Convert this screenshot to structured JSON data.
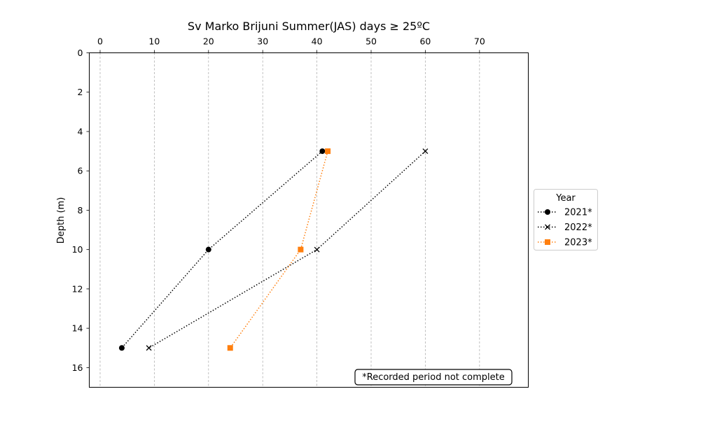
{
  "chart_data": {
    "type": "line",
    "title": "Sv Marko Brijuni Summer(JAS) days ≥ 25ºC",
    "xlabel": "",
    "ylabel": "Depth (m)",
    "x_axis_position": "top",
    "y_axis_inverted": true,
    "xlim": [
      -2,
      79
    ],
    "ylim": [
      17,
      0
    ],
    "x_ticks": [
      0,
      10,
      20,
      30,
      40,
      50,
      60,
      70
    ],
    "y_ticks": [
      0,
      2,
      4,
      6,
      8,
      10,
      12,
      14,
      16
    ],
    "grid": "vertical dashed",
    "legend": {
      "title": "Year",
      "placement": "outside-right"
    },
    "series": [
      {
        "name": "2021*",
        "color": "#000000",
        "marker": "circle",
        "line_style": "dotted",
        "points": [
          {
            "x": 41,
            "y": 5
          },
          {
            "x": 20,
            "y": 10
          },
          {
            "x": 4,
            "y": 15
          }
        ]
      },
      {
        "name": "2022*",
        "color": "#000000",
        "marker": "x",
        "line_style": "dotted",
        "points": [
          {
            "x": 60,
            "y": 5
          },
          {
            "x": 40,
            "y": 10
          },
          {
            "x": 9,
            "y": 15
          }
        ]
      },
      {
        "name": "2023*",
        "color": "#ff7f0e",
        "marker": "square",
        "line_style": "dotted",
        "points": [
          {
            "x": 42,
            "y": 5
          },
          {
            "x": 37,
            "y": 10
          },
          {
            "x": 24,
            "y": 15
          }
        ]
      }
    ],
    "annotation": "*Recorded period not complete"
  }
}
